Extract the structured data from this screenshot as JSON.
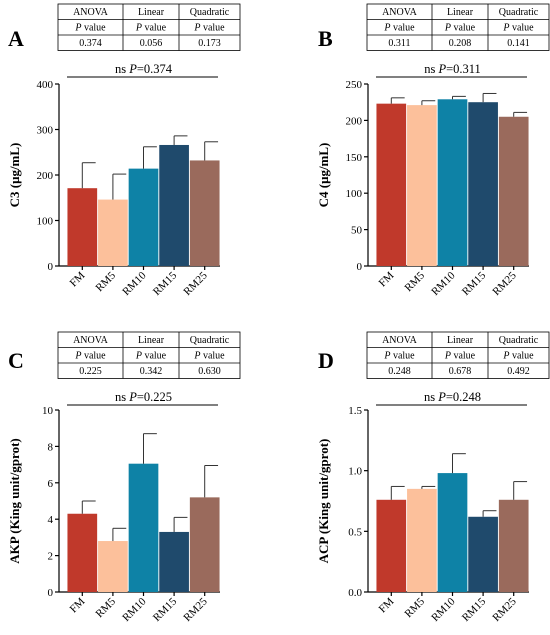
{
  "stat_table": {
    "headers": [
      "ANOVA",
      "Linear",
      "Quadratic"
    ],
    "row_label": "P value"
  },
  "chart_data": [
    {
      "type": "bar",
      "panel": "A",
      "categories": [
        "FM",
        "RM5",
        "RM10",
        "RM15",
        "RM25"
      ],
      "values": [
        171,
        146,
        214,
        266,
        232
      ],
      "errors": [
        56,
        56,
        48,
        20,
        41
      ],
      "ylabel": "C3 (μg/mL)",
      "ylim": [
        0,
        400
      ],
      "yticks": [
        "0",
        "100",
        "200",
        "300",
        "400"
      ],
      "significance": {
        "mark": "ns",
        "p_label": "P",
        "p_text": "=0.374"
      },
      "table_values": [
        "0.374",
        "0.056",
        "0.173"
      ]
    },
    {
      "type": "bar",
      "panel": "B",
      "categories": [
        "FM",
        "RM5",
        "RM10",
        "RM15",
        "RM25"
      ],
      "values": [
        223,
        221,
        229,
        225,
        205
      ],
      "errors": [
        8,
        6,
        4,
        12,
        6
      ],
      "ylabel": "C4 (μg/mL)",
      "ylim": [
        0,
        250
      ],
      "yticks": [
        "0",
        "50",
        "100",
        "150",
        "200",
        "250"
      ],
      "significance": {
        "mark": "ns",
        "p_label": "P",
        "p_text": "=0.311"
      },
      "table_values": [
        "0.311",
        "0.208",
        "0.141"
      ]
    },
    {
      "type": "bar",
      "panel": "C",
      "categories": [
        "FM",
        "RM5",
        "RM10",
        "RM15",
        "RM25"
      ],
      "values": [
        4.3,
        2.8,
        7.05,
        3.3,
        5.2
      ],
      "errors": [
        0.7,
        0.7,
        1.65,
        0.8,
        1.75
      ],
      "ylabel": "AKP (King unit/gprot)",
      "ylim": [
        0,
        10
      ],
      "yticks": [
        "0",
        "2",
        "4",
        "6",
        "8",
        "10"
      ],
      "significance": {
        "mark": "ns",
        "p_label": "P",
        "p_text": "=0.225"
      },
      "table_values": [
        "0.225",
        "0.342",
        "0.630"
      ]
    },
    {
      "type": "bar",
      "panel": "D",
      "categories": [
        "FM",
        "RM5",
        "RM10",
        "RM15",
        "RM25"
      ],
      "values": [
        0.76,
        0.85,
        0.98,
        0.62,
        0.76
      ],
      "errors": [
        0.11,
        0.02,
        0.16,
        0.05,
        0.15
      ],
      "ylabel": "ACP (King unit/gprot)",
      "ylim": [
        0,
        1.5
      ],
      "yticks": [
        "0.0",
        "0.5",
        "1.0",
        "1.5"
      ],
      "significance": {
        "mark": "ns",
        "p_label": "P",
        "p_text": "=0.248"
      },
      "table_values": [
        "0.248",
        "0.678",
        "0.492"
      ]
    }
  ],
  "colors": [
    "#c0392b",
    "#fcc09b",
    "#0e82a6",
    "#1f4a6c",
    "#9a6a5c"
  ]
}
